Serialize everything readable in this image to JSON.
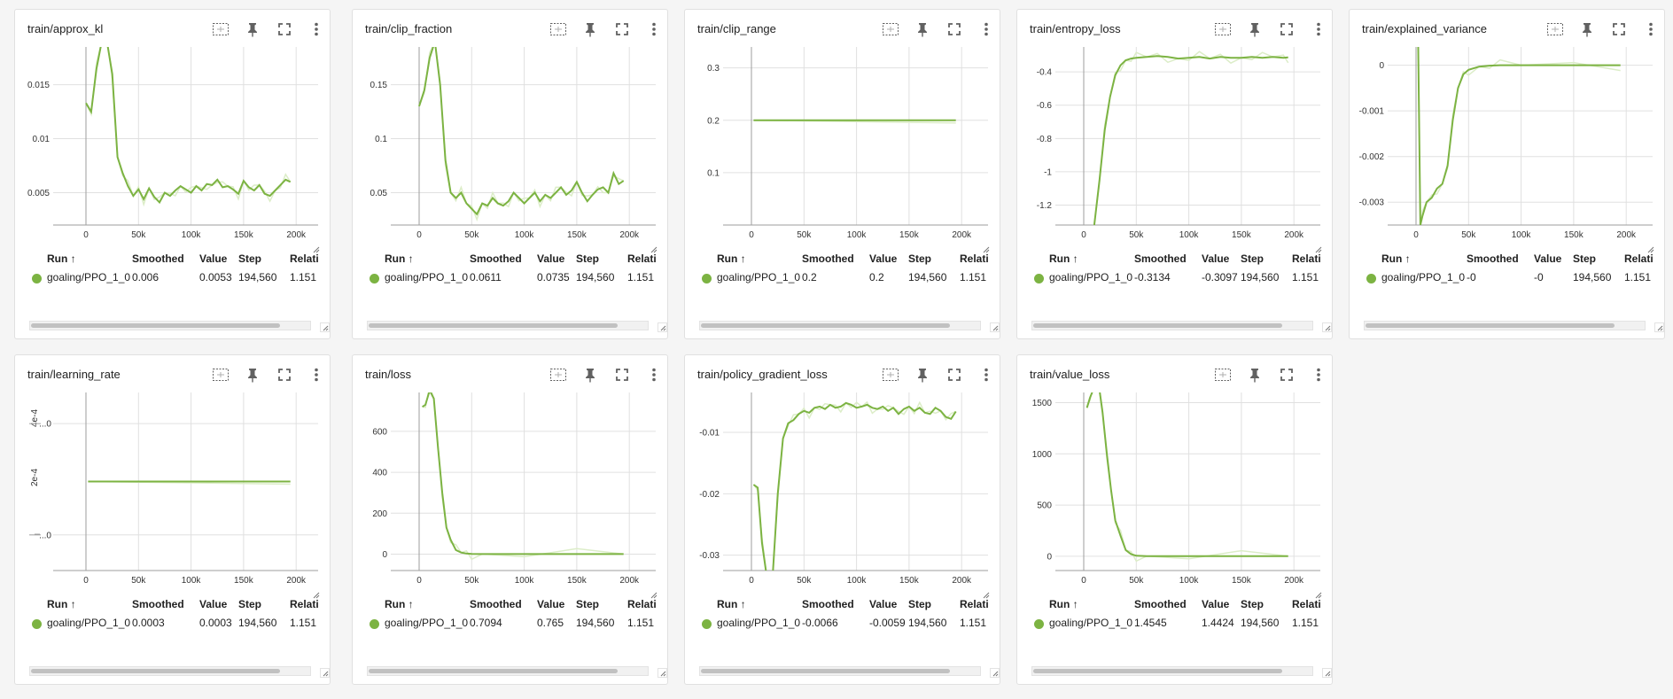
{
  "colors": {
    "line": "#7cb342",
    "line_raw": "#dcedc8",
    "grid": "#e0e0e0",
    "axis": "#757575"
  },
  "icons": [
    "fit-domain-icon",
    "pin-icon",
    "fullscreen-icon",
    "more-vert-icon"
  ],
  "table_headers": {
    "run": "Run ↑",
    "smoothed": "Smoothed",
    "value": "Value",
    "step": "Step",
    "relative": "Relati"
  },
  "cards": [
    {
      "title": "train/approx_kl",
      "row": {
        "run": "goaling/PPO_1_0",
        "smoothed": "0.006",
        "value": "0.0053",
        "step": "194,560",
        "relative": "1.151"
      },
      "y_ticks": [
        "0.015",
        "0.01",
        "0.005"
      ],
      "x_ticks": [
        "0",
        "50k",
        "100k",
        "150k",
        "200k"
      ]
    },
    {
      "title": "train/clip_fraction",
      "row": {
        "run": "goaling/PPO_1_0",
        "smoothed": "0.0611",
        "value": "0.0735",
        "step": "194,560",
        "relative": "1.151"
      },
      "y_ticks": [
        "0.15",
        "0.1",
        "0.05"
      ],
      "x_ticks": [
        "0",
        "50k",
        "100k",
        "150k",
        "200k"
      ]
    },
    {
      "title": "train/clip_range",
      "row": {
        "run": "goaling/PPO_1_0",
        "smoothed": "0.2",
        "value": "0.2",
        "step": "194,560",
        "relative": "1.151"
      },
      "y_ticks": [
        "0.3",
        "0.2",
        "0.1"
      ],
      "x_ticks": [
        "0",
        "50k",
        "100k",
        "150k",
        "200k"
      ]
    },
    {
      "title": "train/entropy_loss",
      "row": {
        "run": "goaling/PPO_1_0",
        "smoothed": "-0.3134",
        "value": "-0.3097",
        "step": "194,560",
        "relative": "1.151"
      },
      "y_ticks": [
        "-0.4",
        "-0.6",
        "-0.8",
        "-1",
        "-1.2"
      ],
      "x_ticks": [
        "0",
        "50k",
        "100k",
        "150k",
        "200k"
      ]
    },
    {
      "title": "train/explained_variance",
      "row": {
        "run": "goaling/PPO_1_0",
        "smoothed": "-0",
        "value": "-0",
        "step": "194,560",
        "relative": "1.151"
      },
      "y_ticks": [
        "0",
        "-0.001",
        "-0.002",
        "-0.003"
      ],
      "x_ticks": [
        "0",
        "50k",
        "100k",
        "150k",
        "200k"
      ]
    },
    {
      "title": "train/learning_rate",
      "row": {
        "run": "goaling/PPO_1_0",
        "smoothed": "0.0003",
        "value": "0.0003",
        "step": "194,560",
        "relative": "1.151"
      },
      "y_ticks": [
        "...0",
        "...0"
      ],
      "y_rot_ticks": [
        "4e-4",
        "2e-4"
      ],
      "x_ticks": [
        "0",
        "50k",
        "100k",
        "150k",
        "200k"
      ]
    },
    {
      "title": "train/loss",
      "row": {
        "run": "goaling/PPO_1_0",
        "smoothed": "0.7094",
        "value": "0.765",
        "step": "194,560",
        "relative": "1.151"
      },
      "y_ticks": [
        "600",
        "400",
        "200",
        "0"
      ],
      "x_ticks": [
        "0",
        "50k",
        "100k",
        "150k",
        "200k"
      ]
    },
    {
      "title": "train/policy_gradient_loss",
      "row": {
        "run": "goaling/PPO_1_0",
        "smoothed": "-0.0066",
        "value": "-0.0059",
        "step": "194,560",
        "relative": "1.151"
      },
      "y_ticks": [
        "-0.01",
        "-0.02",
        "-0.03"
      ],
      "x_ticks": [
        "0",
        "50k",
        "100k",
        "150k",
        "200k"
      ]
    },
    {
      "title": "train/value_loss",
      "row": {
        "run": "goaling/PPO_1_0",
        "smoothed": "1.4545",
        "value": "1.4424",
        "step": "194,560",
        "relative": "1.151"
      },
      "y_ticks": [
        "1500",
        "1000",
        "500",
        "0"
      ],
      "x_ticks": [
        "0",
        "50k",
        "100k",
        "150k",
        "200k"
      ]
    }
  ],
  "chart_data": [
    {
      "type": "line",
      "title": "train/approx_kl",
      "xlim": [
        0,
        200000
      ],
      "ylim": [
        0.002,
        0.0185
      ],
      "x_ticks": [
        0,
        50000,
        100000,
        150000,
        200000
      ],
      "y_ticks": [
        0.015,
        0.01,
        0.005
      ],
      "series": [
        {
          "name": "goaling/PPO_1_0",
          "x": [
            0,
            5000,
            10000,
            15000,
            20000,
            25000,
            30000,
            35000,
            40000,
            45000,
            50000,
            55000,
            60000,
            65000,
            70000,
            75000,
            80000,
            85000,
            90000,
            95000,
            100000,
            105000,
            110000,
            115000,
            120000,
            125000,
            130000,
            135000,
            140000,
            145000,
            150000,
            155000,
            160000,
            165000,
            170000,
            175000,
            180000,
            185000,
            190000,
            194560
          ],
          "y": [
            0.0133,
            0.0125,
            0.0165,
            0.019,
            0.019,
            0.016,
            0.0083,
            0.0068,
            0.0056,
            0.0047,
            0.0053,
            0.0044,
            0.0054,
            0.0046,
            0.0041,
            0.005,
            0.0047,
            0.0052,
            0.0056,
            0.0053,
            0.005,
            0.0056,
            0.0052,
            0.0058,
            0.0057,
            0.0062,
            0.0055,
            0.0056,
            0.0053,
            0.0049,
            0.0061,
            0.0055,
            0.0052,
            0.0057,
            0.0049,
            0.0047,
            0.0052,
            0.0057,
            0.0062,
            0.006
          ]
        }
      ]
    },
    {
      "type": "line",
      "title": "train/clip_fraction",
      "xlim": [
        0,
        200000
      ],
      "ylim": [
        0.02,
        0.185
      ],
      "x_ticks": [
        0,
        50000,
        100000,
        150000,
        200000
      ],
      "y_ticks": [
        0.15,
        0.1,
        0.05
      ],
      "series": [
        {
          "name": "goaling/PPO_1_0",
          "x": [
            0,
            5000,
            10000,
            15000,
            20000,
            25000,
            30000,
            35000,
            40000,
            45000,
            50000,
            55000,
            60000,
            65000,
            70000,
            75000,
            80000,
            85000,
            90000,
            95000,
            100000,
            105000,
            110000,
            115000,
            120000,
            125000,
            130000,
            135000,
            140000,
            145000,
            150000,
            155000,
            160000,
            165000,
            170000,
            175000,
            180000,
            185000,
            190000,
            194560
          ],
          "y": [
            0.13,
            0.145,
            0.175,
            0.19,
            0.15,
            0.08,
            0.05,
            0.045,
            0.05,
            0.04,
            0.035,
            0.03,
            0.04,
            0.038,
            0.045,
            0.04,
            0.038,
            0.042,
            0.05,
            0.045,
            0.04,
            0.045,
            0.05,
            0.042,
            0.048,
            0.045,
            0.05,
            0.055,
            0.048,
            0.052,
            0.06,
            0.05,
            0.042,
            0.048,
            0.053,
            0.055,
            0.05,
            0.068,
            0.058,
            0.061
          ]
        }
      ]
    },
    {
      "type": "line",
      "title": "train/clip_range",
      "xlim": [
        0,
        200000
      ],
      "ylim": [
        0,
        0.34
      ],
      "x_ticks": [
        0,
        50000,
        100000,
        150000,
        200000
      ],
      "y_ticks": [
        0.3,
        0.2,
        0.1
      ],
      "series": [
        {
          "name": "goaling/PPO_1_0",
          "x": [
            2048,
            194560
          ],
          "y": [
            0.2,
            0.2
          ]
        }
      ]
    },
    {
      "type": "line",
      "title": "train/entropy_loss",
      "xlim": [
        0,
        200000
      ],
      "ylim": [
        -1.32,
        -0.25
      ],
      "x_ticks": [
        0,
        50000,
        100000,
        150000,
        200000
      ],
      "y_ticks": [
        -0.4,
        -0.6,
        -0.8,
        -1,
        -1.2
      ],
      "series": [
        {
          "name": "goaling/PPO_1_0",
          "x": [
            10000,
            15000,
            20000,
            25000,
            30000,
            35000,
            40000,
            45000,
            50000,
            60000,
            70000,
            80000,
            90000,
            100000,
            110000,
            120000,
            130000,
            140000,
            150000,
            160000,
            170000,
            180000,
            190000,
            194560
          ],
          "y": [
            -1.32,
            -1.05,
            -0.75,
            -0.55,
            -0.42,
            -0.36,
            -0.33,
            -0.32,
            -0.315,
            -0.31,
            -0.305,
            -0.31,
            -0.32,
            -0.315,
            -0.31,
            -0.32,
            -0.31,
            -0.315,
            -0.315,
            -0.31,
            -0.315,
            -0.31,
            -0.315,
            -0.313
          ]
        }
      ]
    },
    {
      "type": "line",
      "title": "train/explained_variance",
      "xlim": [
        0,
        200000
      ],
      "ylim": [
        -0.0035,
        0.0004
      ],
      "x_ticks": [
        0,
        50000,
        100000,
        150000,
        200000
      ],
      "y_ticks": [
        0,
        -0.001,
        -0.002,
        -0.003
      ],
      "series": [
        {
          "name": "goaling/PPO_1_0",
          "x": [
            2048,
            4096,
            6144,
            10000,
            15000,
            20000,
            25000,
            30000,
            35000,
            40000,
            45000,
            50000,
            60000,
            70000,
            80000,
            100000,
            150000,
            194560
          ],
          "y": [
            0.0005,
            -0.0035,
            -0.0033,
            -0.003,
            -0.0029,
            -0.0027,
            -0.0026,
            -0.0022,
            -0.0012,
            -0.0005,
            -0.0002,
            -0.0001,
            -3e-05,
            -1e-05,
            0,
            0,
            0,
            0
          ]
        }
      ]
    },
    {
      "type": "line",
      "title": "train/learning_rate",
      "xlim": [
        0,
        200000
      ],
      "ylim": [
        0.0002998,
        0.0003002
      ],
      "x_ticks": [
        0,
        50000,
        100000,
        150000,
        200000
      ],
      "series": [
        {
          "name": "goaling/PPO_1_0",
          "x": [
            2048,
            194560
          ],
          "y": [
            0.0003,
            0.0003
          ]
        }
      ]
    },
    {
      "type": "line",
      "title": "train/loss",
      "xlim": [
        0,
        200000
      ],
      "ylim": [
        -80,
        790
      ],
      "x_ticks": [
        0,
        50000,
        100000,
        150000,
        200000
      ],
      "y_ticks": [
        600,
        400,
        200,
        0
      ],
      "series": [
        {
          "name": "goaling/PPO_1_0",
          "x": [
            3000,
            6000,
            10000,
            14000,
            18000,
            22000,
            26000,
            30000,
            35000,
            40000,
            45000,
            50000,
            60000,
            100000,
            150000,
            194560
          ],
          "y": [
            720,
            730,
            800,
            760,
            520,
            300,
            130,
            70,
            20,
            8,
            3,
            1,
            0.7,
            0.7,
            0.7,
            0.7
          ]
        }
      ]
    },
    {
      "type": "line",
      "title": "train/policy_gradient_loss",
      "xlim": [
        0,
        200000
      ],
      "ylim": [
        -0.0325,
        -0.0035
      ],
      "x_ticks": [
        0,
        50000,
        100000,
        150000,
        200000
      ],
      "y_ticks": [
        -0.01,
        -0.02,
        -0.03
      ],
      "series": [
        {
          "name": "goaling/PPO_1_0",
          "x": [
            2048,
            6000,
            10000,
            15000,
            20000,
            25000,
            30000,
            35000,
            40000,
            45000,
            50000,
            55000,
            60000,
            65000,
            70000,
            75000,
            80000,
            85000,
            90000,
            95000,
            100000,
            105000,
            110000,
            115000,
            120000,
            125000,
            130000,
            135000,
            140000,
            145000,
            150000,
            155000,
            160000,
            165000,
            170000,
            175000,
            180000,
            185000,
            190000,
            194560
          ],
          "y": [
            -0.0185,
            -0.019,
            -0.028,
            -0.034,
            -0.034,
            -0.02,
            -0.011,
            -0.0085,
            -0.008,
            -0.007,
            -0.0065,
            -0.0068,
            -0.006,
            -0.0058,
            -0.0062,
            -0.0055,
            -0.006,
            -0.0058,
            -0.0052,
            -0.0055,
            -0.006,
            -0.0058,
            -0.0055,
            -0.006,
            -0.0062,
            -0.0058,
            -0.0065,
            -0.006,
            -0.007,
            -0.0062,
            -0.0058,
            -0.0065,
            -0.006,
            -0.0068,
            -0.007,
            -0.006,
            -0.0065,
            -0.0075,
            -0.0078,
            -0.0066
          ]
        }
      ]
    },
    {
      "type": "line",
      "title": "train/value_loss",
      "xlim": [
        0,
        200000
      ],
      "ylim": [
        -140,
        1600
      ],
      "x_ticks": [
        0,
        50000,
        100000,
        150000,
        200000
      ],
      "y_ticks": [
        1500,
        1000,
        500,
        0
      ],
      "series": [
        {
          "name": "goaling/PPO_1_0",
          "x": [
            3000,
            6000,
            10000,
            14000,
            18000,
            22000,
            26000,
            30000,
            35000,
            40000,
            45000,
            50000,
            60000,
            100000,
            150000,
            194560
          ],
          "y": [
            1450,
            1550,
            1650,
            1700,
            1400,
            1000,
            650,
            350,
            200,
            60,
            20,
            5,
            1.5,
            1.5,
            1.5,
            1.45
          ]
        }
      ]
    }
  ]
}
